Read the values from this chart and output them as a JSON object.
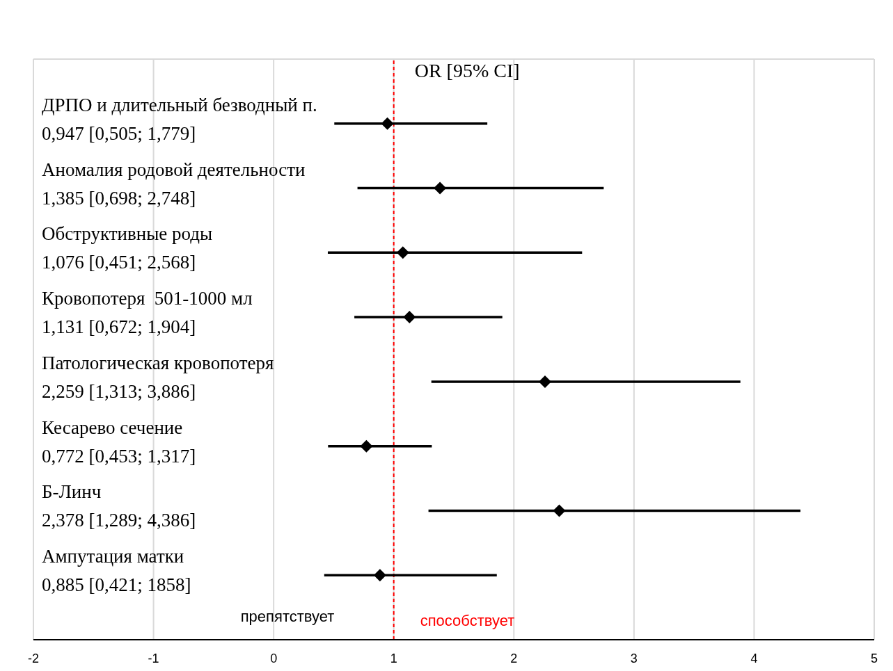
{
  "chart_data": {
    "type": "scatter",
    "title": "OR [95% CI]",
    "orientation": "horizontal",
    "categories": [
      "ДРПО и длительный безводный п.\n0,947 [0,505; 1,779]",
      "Аномалия родовой деятельности\n1,385 [0,698; 2,748]",
      "Обструктивные роды\n1,076 [0,451; 2,568]",
      "Кровопотеря  501-1000 мл\n1,131 [0,672; 1,904]",
      "Патологическая кровопотеря\n2,259 [1,313; 3,886]",
      "Кесарево сечение\n0,772 [0,453; 1,317]",
      "Б-Линч\n2,378 [1,289; 4,386]",
      "Ампутация матки\n0,885 [0,421; 1858]"
    ],
    "series": [
      {
        "color": "#000000",
        "values": [
          0.947,
          1.385,
          1.076,
          1.131,
          2.259,
          0.772,
          2.378,
          0.885
        ],
        "errors": [
          [
            0.505,
            1.779
          ],
          [
            0.698,
            2.748
          ],
          [
            0.451,
            2.568
          ],
          [
            0.672,
            1.904
          ],
          [
            1.313,
            3.886
          ],
          [
            0.453,
            1.317
          ],
          [
            1.289,
            4.386
          ],
          [
            0.421,
            1.858
          ]
        ]
      }
    ],
    "xlim": [
      -2,
      5
    ],
    "xticks": [
      -2,
      -1,
      0,
      1,
      2,
      3,
      4,
      5
    ],
    "grid": true,
    "marker": "diamond",
    "ref_lines": [
      {
        "axis": "x",
        "value": 1,
        "color": "#ff0000",
        "line_style": "dashed"
      }
    ],
    "annotations": [
      "препятствует",
      "способствует"
    ]
  }
}
